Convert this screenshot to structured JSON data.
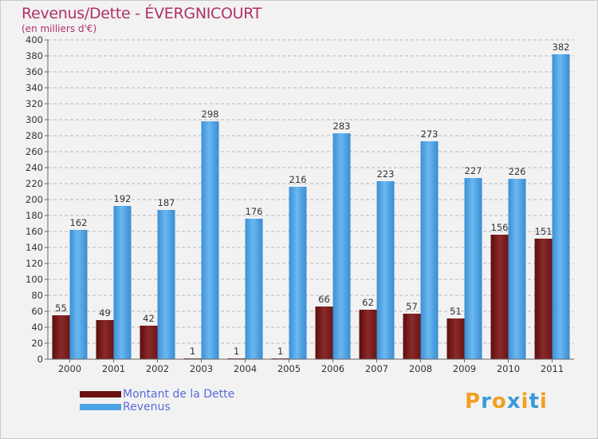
{
  "chart_data": {
    "type": "bar",
    "title": "Revenus/Dette - ÉVERGNICOURT",
    "subtitle": "(en milliers d'€)",
    "categories": [
      "2000",
      "2001",
      "2002",
      "2003",
      "2004",
      "2005",
      "2006",
      "2007",
      "2008",
      "2009",
      "2010",
      "2011"
    ],
    "series": [
      {
        "name": "Montant de la Dette",
        "color": "#7a1a1a",
        "values": [
          55,
          49,
          42,
          1,
          1,
          1,
          66,
          62,
          57,
          51,
          156,
          151
        ]
      },
      {
        "name": "Revenus",
        "color": "#4aa3e6",
        "values": [
          162,
          192,
          187,
          298,
          176,
          216,
          283,
          223,
          273,
          227,
          226,
          382
        ]
      }
    ],
    "ylim": [
      0,
      400
    ],
    "ytick_step": 20,
    "grid": true,
    "legend_position": "bottom-left"
  },
  "logo": {
    "letters": [
      "P",
      "r",
      "o",
      "x",
      "i",
      "t",
      "i"
    ],
    "colors": [
      "#f0a020",
      "#3a9ad8",
      "#f0a020",
      "#3a9ad8",
      "#f0a020",
      "#3a9ad8",
      "#f0a020"
    ]
  }
}
